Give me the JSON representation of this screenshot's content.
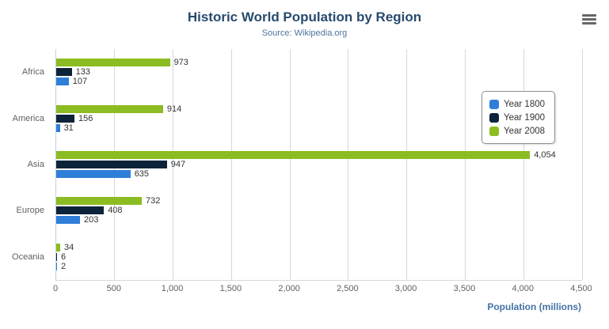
{
  "chart_data": {
    "type": "bar",
    "title": "Historic World Population by Region",
    "subtitle": "Source: Wikipedia.org",
    "categories": [
      "Africa",
      "America",
      "Asia",
      "Europe",
      "Oceania"
    ],
    "series": [
      {
        "name": "Year 1800",
        "color": "#2f7ed8",
        "values": [
          107,
          31,
          635,
          203,
          2
        ]
      },
      {
        "name": "Year 1900",
        "color": "#0d233a",
        "values": [
          133,
          156,
          947,
          408,
          6
        ]
      },
      {
        "name": "Year 2008",
        "color": "#8bbc21",
        "values": [
          973,
          914,
          4054,
          732,
          34
        ]
      }
    ],
    "display_order_top_to_bottom": [
      "Year 2008",
      "Year 1900",
      "Year 1800"
    ],
    "xlabel": "Population (millions)",
    "xlim": [
      0,
      4500
    ],
    "x_ticks": [
      "0",
      "500",
      "1,000",
      "1,500",
      "2,000",
      "2,500",
      "3,000",
      "3,500",
      "4,000",
      "4,500"
    ],
    "grid": true,
    "legend_position": "right"
  },
  "menu": {
    "icon": "hamburger"
  }
}
